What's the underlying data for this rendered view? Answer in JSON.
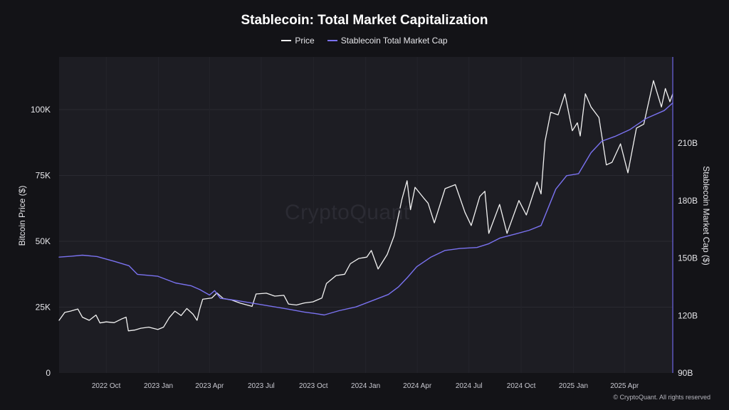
{
  "chart_data": {
    "type": "line",
    "title": "Stablecoin: Total Market Capitalization",
    "left_axis": {
      "label": "Bitcoin Price ($)",
      "ylim": [
        0,
        120000
      ],
      "ticks": [
        0,
        25000,
        50000,
        75000,
        100000
      ],
      "tick_labels": [
        "0",
        "25K",
        "50K",
        "75K",
        "100K"
      ]
    },
    "right_axis": {
      "label": "Stablecoin Market Cap ($)",
      "ylim": [
        90,
        255
      ],
      "ticks": [
        90,
        120,
        150,
        180,
        210
      ],
      "tick_labels": [
        "90B",
        "120B",
        "150B",
        "180B",
        "210B"
      ]
    },
    "x_axis": {
      "range": [
        "2022-07-10",
        "2025-06-25"
      ],
      "ticks": [
        "2022-10-01",
        "2023-01-01",
        "2023-04-01",
        "2023-07-01",
        "2023-10-01",
        "2024-01-01",
        "2024-04-01",
        "2024-07-01",
        "2024-10-01",
        "2025-01-01",
        "2025-04-01"
      ],
      "tick_labels": [
        "2022 Oct",
        "2023 Jan",
        "2023 Apr",
        "2023 Jul",
        "2023 Oct",
        "2024 Jan",
        "2024 Apr",
        "2024 Jul",
        "2024 Oct",
        "2025 Jan",
        "2025 Apr"
      ]
    },
    "grid": true,
    "legend_position": "top-center",
    "series": [
      {
        "name": "Price",
        "axis": "left",
        "color": "#f2f2f2",
        "points": [
          [
            "2022-07-10",
            20000
          ],
          [
            "2022-07-20",
            23000
          ],
          [
            "2022-07-30",
            23500
          ],
          [
            "2022-08-12",
            24300
          ],
          [
            "2022-08-20",
            21200
          ],
          [
            "2022-09-01",
            20000
          ],
          [
            "2022-09-13",
            22000
          ],
          [
            "2022-09-20",
            19000
          ],
          [
            "2022-10-01",
            19400
          ],
          [
            "2022-10-15",
            19100
          ],
          [
            "2022-10-29",
            20600
          ],
          [
            "2022-11-05",
            21200
          ],
          [
            "2022-11-09",
            16000
          ],
          [
            "2022-11-20",
            16300
          ],
          [
            "2022-12-01",
            17000
          ],
          [
            "2022-12-15",
            17400
          ],
          [
            "2022-12-31",
            16500
          ],
          [
            "2023-01-10",
            17400
          ],
          [
            "2023-01-20",
            21000
          ],
          [
            "2023-01-30",
            23500
          ],
          [
            "2023-02-10",
            21800
          ],
          [
            "2023-02-20",
            24500
          ],
          [
            "2023-03-03",
            22300
          ],
          [
            "2023-03-10",
            20000
          ],
          [
            "2023-03-15",
            24500
          ],
          [
            "2023-03-20",
            28000
          ],
          [
            "2023-04-05",
            28500
          ],
          [
            "2023-04-14",
            30400
          ],
          [
            "2023-04-25",
            28300
          ],
          [
            "2023-05-10",
            27700
          ],
          [
            "2023-05-25",
            26500
          ],
          [
            "2023-06-15",
            25300
          ],
          [
            "2023-06-22",
            30000
          ],
          [
            "2023-07-10",
            30300
          ],
          [
            "2023-07-25",
            29200
          ],
          [
            "2023-08-10",
            29500
          ],
          [
            "2023-08-18",
            26200
          ],
          [
            "2023-09-01",
            25800
          ],
          [
            "2023-09-15",
            26600
          ],
          [
            "2023-09-30",
            27000
          ],
          [
            "2023-10-16",
            28500
          ],
          [
            "2023-10-24",
            34000
          ],
          [
            "2023-11-10",
            37000
          ],
          [
            "2023-11-25",
            37500
          ],
          [
            "2023-12-05",
            41500
          ],
          [
            "2023-12-20",
            43500
          ],
          [
            "2024-01-03",
            44000
          ],
          [
            "2024-01-11",
            46500
          ],
          [
            "2024-01-23",
            39500
          ],
          [
            "2024-02-08",
            45000
          ],
          [
            "2024-02-20",
            52000
          ],
          [
            "2024-02-28",
            60000
          ],
          [
            "2024-03-05",
            66000
          ],
          [
            "2024-03-14",
            73000
          ],
          [
            "2024-03-20",
            62000
          ],
          [
            "2024-03-28",
            70500
          ],
          [
            "2024-04-12",
            66500
          ],
          [
            "2024-04-20",
            64500
          ],
          [
            "2024-05-01",
            57000
          ],
          [
            "2024-05-20",
            70000
          ],
          [
            "2024-06-07",
            71500
          ],
          [
            "2024-06-24",
            61000
          ],
          [
            "2024-07-05",
            56000
          ],
          [
            "2024-07-20",
            67000
          ],
          [
            "2024-07-29",
            69000
          ],
          [
            "2024-08-05",
            53000
          ],
          [
            "2024-08-24",
            64000
          ],
          [
            "2024-09-06",
            53000
          ],
          [
            "2024-09-27",
            65500
          ],
          [
            "2024-10-10",
            60000
          ],
          [
            "2024-10-29",
            72500
          ],
          [
            "2024-11-05",
            68000
          ],
          [
            "2024-11-12",
            88000
          ],
          [
            "2024-11-22",
            99000
          ],
          [
            "2024-12-05",
            98000
          ],
          [
            "2024-12-17",
            106000
          ],
          [
            "2024-12-30",
            92000
          ],
          [
            "2025-01-08",
            95000
          ],
          [
            "2025-01-13",
            90000
          ],
          [
            "2025-01-22",
            106000
          ],
          [
            "2025-02-01",
            101000
          ],
          [
            "2025-02-15",
            97000
          ],
          [
            "2025-02-28",
            79000
          ],
          [
            "2025-03-10",
            80000
          ],
          [
            "2025-03-25",
            87000
          ],
          [
            "2025-04-07",
            76000
          ],
          [
            "2025-04-22",
            93000
          ],
          [
            "2025-05-05",
            94500
          ],
          [
            "2025-05-22",
            111000
          ],
          [
            "2025-06-05",
            101000
          ],
          [
            "2025-06-12",
            108000
          ],
          [
            "2025-06-20",
            103000
          ],
          [
            "2025-06-25",
            106000
          ]
        ]
      },
      {
        "name": "Stablecoin Total Market Cap",
        "axis": "right",
        "color": "#7a72f0",
        "points": [
          [
            "2022-07-10",
            150.5
          ],
          [
            "2022-08-01",
            151.0
          ],
          [
            "2022-08-20",
            151.5
          ],
          [
            "2022-09-15",
            150.8
          ],
          [
            "2022-10-15",
            148.3
          ],
          [
            "2022-11-10",
            146.0
          ],
          [
            "2022-11-25",
            141.5
          ],
          [
            "2022-12-31",
            140.5
          ],
          [
            "2023-01-31",
            137.0
          ],
          [
            "2023-02-28",
            135.5
          ],
          [
            "2023-03-15",
            133.5
          ],
          [
            "2023-04-01",
            130.7
          ],
          [
            "2023-04-10",
            133.0
          ],
          [
            "2023-04-20",
            129.0
          ],
          [
            "2023-05-15",
            128.0
          ],
          [
            "2023-06-15",
            126.5
          ],
          [
            "2023-07-15",
            125.0
          ],
          [
            "2023-08-15",
            123.5
          ],
          [
            "2023-09-15",
            121.8
          ],
          [
            "2023-10-05",
            121.0
          ],
          [
            "2023-10-20",
            120.3
          ],
          [
            "2023-11-15",
            122.5
          ],
          [
            "2023-12-15",
            124.5
          ],
          [
            "2024-01-15",
            128.0
          ],
          [
            "2024-02-10",
            131.0
          ],
          [
            "2024-02-28",
            135.0
          ],
          [
            "2024-03-15",
            140.0
          ],
          [
            "2024-03-31",
            145.5
          ],
          [
            "2024-04-25",
            150.5
          ],
          [
            "2024-05-20",
            154.0
          ],
          [
            "2024-06-15",
            155.0
          ],
          [
            "2024-07-15",
            155.5
          ],
          [
            "2024-08-05",
            157.5
          ],
          [
            "2024-08-25",
            160.5
          ],
          [
            "2024-09-20",
            162.5
          ],
          [
            "2024-10-15",
            164.5
          ],
          [
            "2024-11-05",
            167.0
          ],
          [
            "2024-11-20",
            178.0
          ],
          [
            "2024-12-01",
            186.0
          ],
          [
            "2024-12-20",
            193.0
          ],
          [
            "2025-01-10",
            194.0
          ],
          [
            "2025-02-01",
            205.0
          ],
          [
            "2025-02-20",
            211.0
          ],
          [
            "2025-03-15",
            213.5
          ],
          [
            "2025-04-10",
            217.0
          ],
          [
            "2025-05-10",
            223.0
          ],
          [
            "2025-06-10",
            227.0
          ],
          [
            "2025-06-25",
            231.0
          ]
        ]
      }
    ]
  },
  "watermark": "CryptoQuant",
  "copyright": "© CryptoQuant. All rights reserved",
  "colors": {
    "background": "#131317",
    "plot_background": "#1d1d23",
    "grid": "#2a2a31",
    "price": "#f2f2f2",
    "stablecoin": "#7a72f0"
  }
}
